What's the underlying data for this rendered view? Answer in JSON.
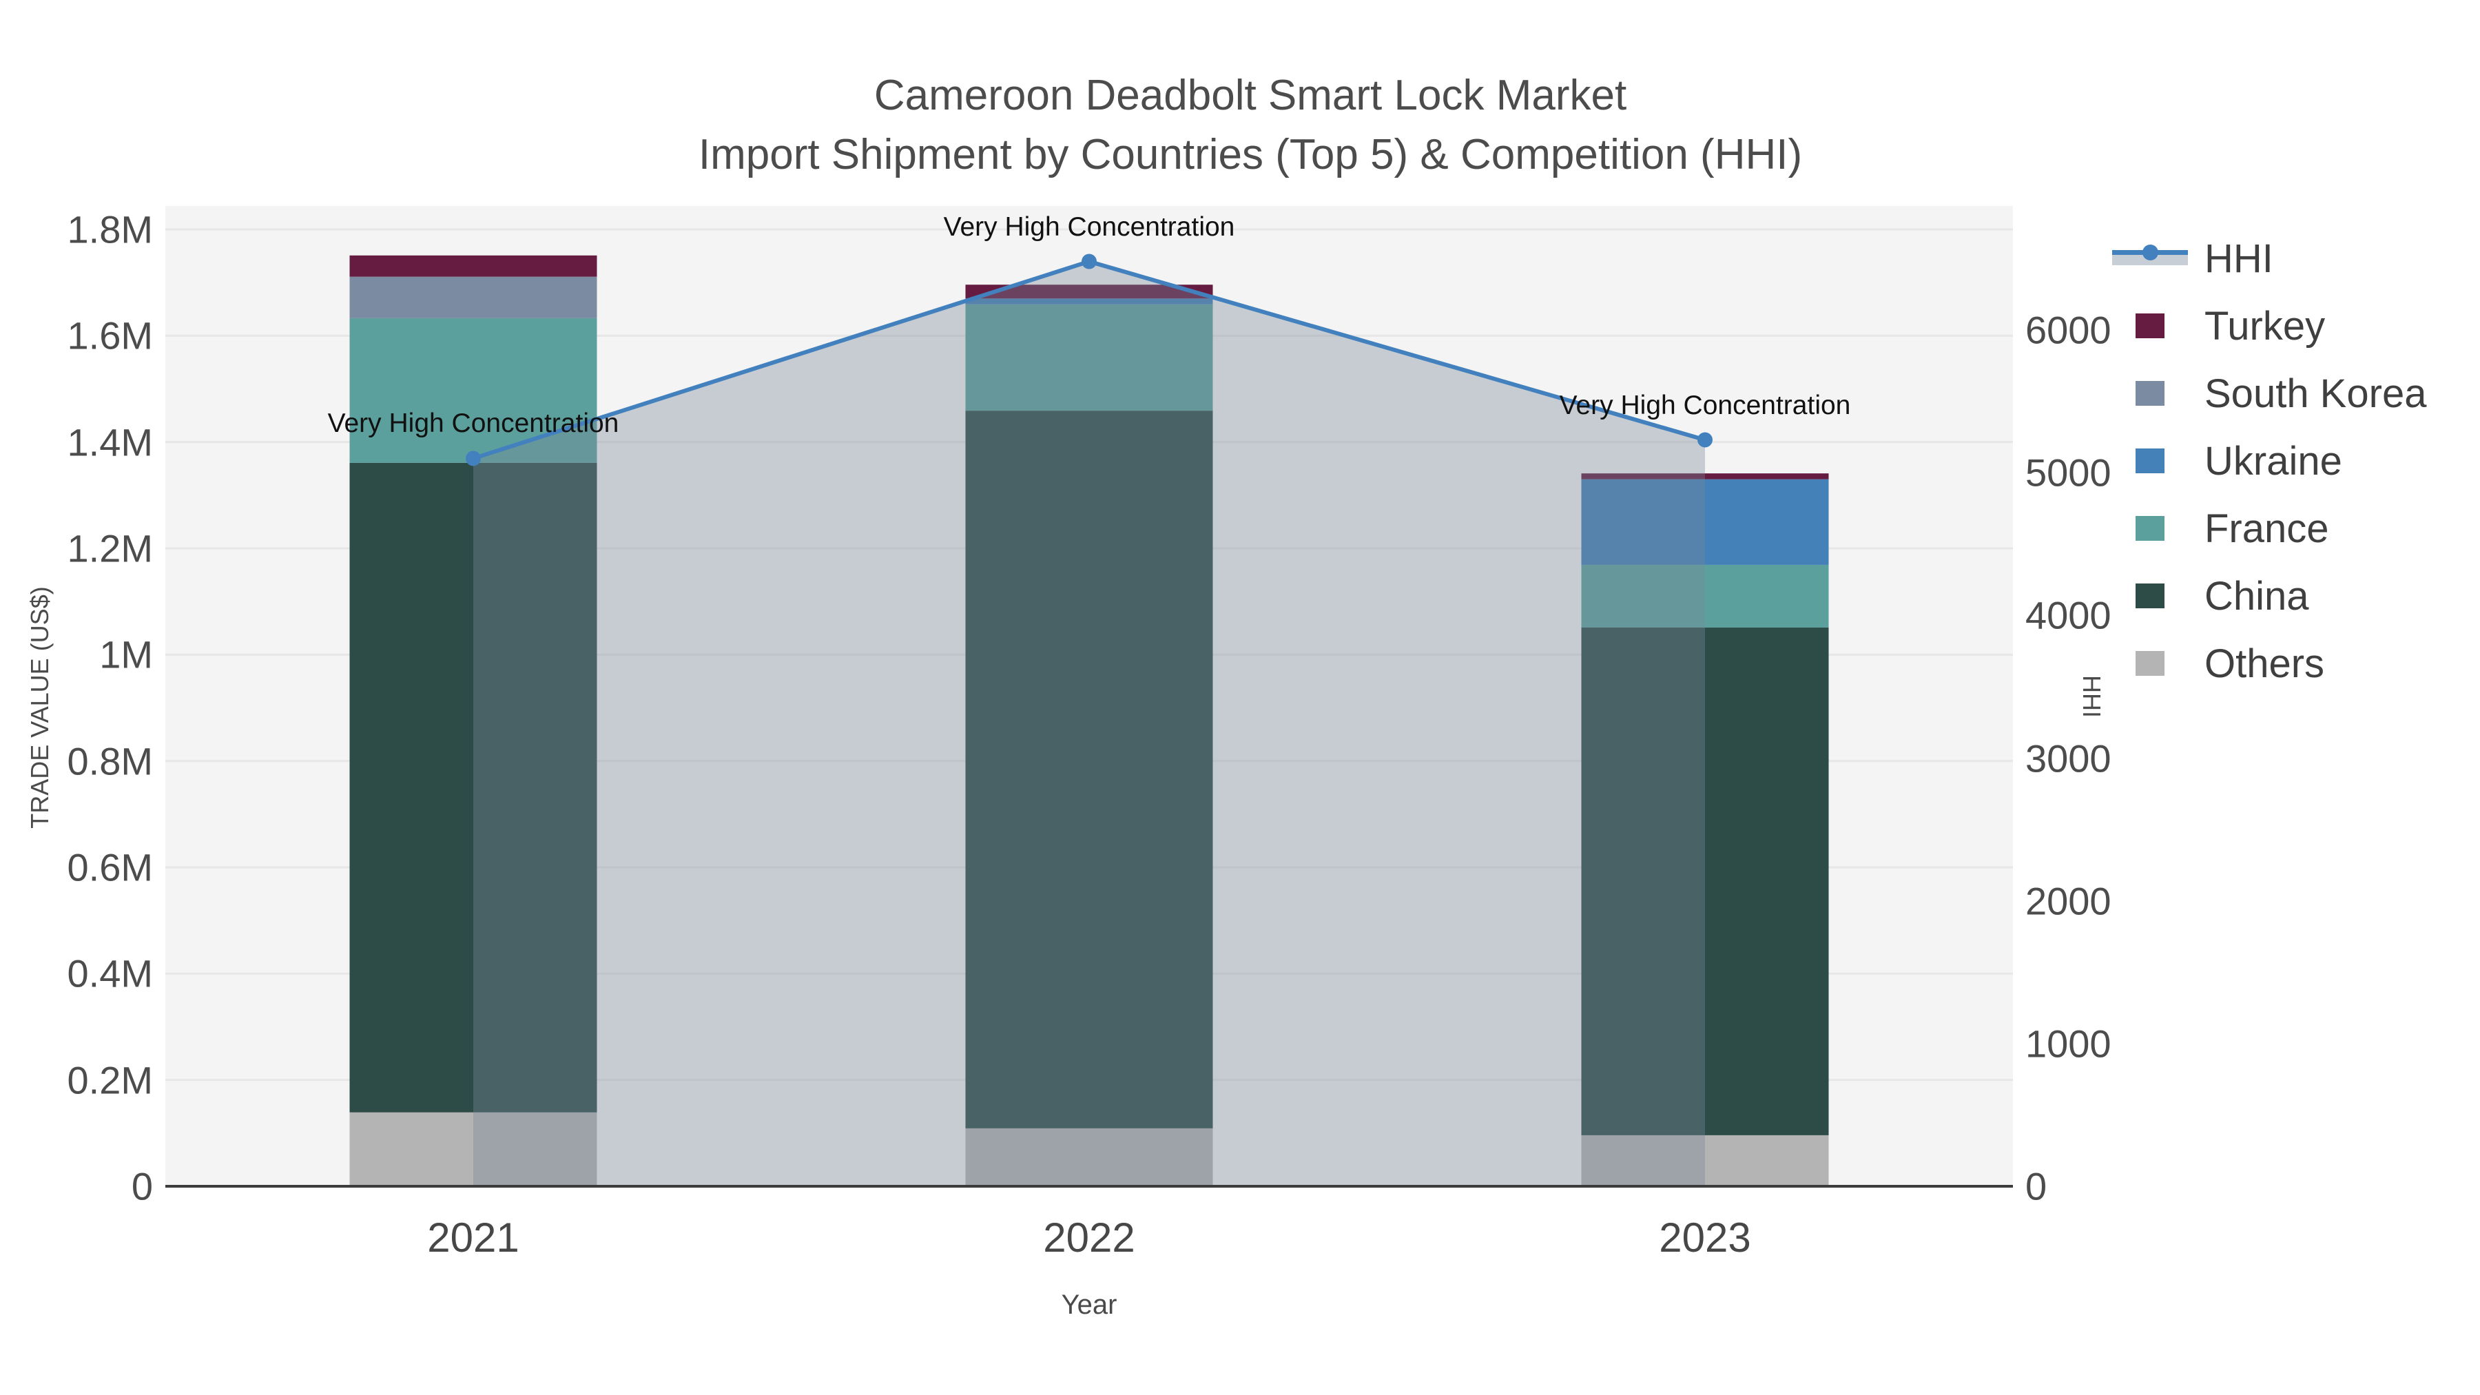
{
  "title": {
    "line1": "Cameroon Deadbolt Smart Lock Market",
    "line2": "Import Shipment by Countries (Top 5) & Competition (HHI)"
  },
  "axes": {
    "x": {
      "title": "Year",
      "categories": [
        "2021",
        "2022",
        "2023"
      ]
    },
    "y": {
      "title": "TRADE VALUE (US$)",
      "ticks": [
        {
          "label": "0",
          "value": 0
        },
        {
          "label": "0.2M",
          "value": 200000
        },
        {
          "label": "0.4M",
          "value": 400000
        },
        {
          "label": "0.6M",
          "value": 600000
        },
        {
          "label": "0.8M",
          "value": 800000
        },
        {
          "label": "1M",
          "value": 1000000
        },
        {
          "label": "1.2M",
          "value": 1200000
        },
        {
          "label": "1.4M",
          "value": 1400000
        },
        {
          "label": "1.6M",
          "value": 1600000
        },
        {
          "label": "1.8M",
          "value": 1800000
        }
      ]
    },
    "y2": {
      "title": "HHI",
      "ticks": [
        {
          "label": "0",
          "value": 0
        },
        {
          "label": "1000",
          "value": 1000
        },
        {
          "label": "2000",
          "value": 2000
        },
        {
          "label": "3000",
          "value": 3000
        },
        {
          "label": "4000",
          "value": 4000
        },
        {
          "label": "5000",
          "value": 5000
        },
        {
          "label": "6000",
          "value": 6000
        }
      ]
    }
  },
  "legend": {
    "items": [
      {
        "label": "HHI",
        "type": "line",
        "color": "#4381BE",
        "band": "#C8CED5"
      },
      {
        "label": "Turkey",
        "type": "swatch",
        "color": "#651C40"
      },
      {
        "label": "South Korea",
        "type": "swatch",
        "color": "#7B8BA1"
      },
      {
        "label": "Ukraine",
        "type": "swatch",
        "color": "#4381B8"
      },
      {
        "label": "France",
        "type": "swatch",
        "color": "#5CA09E"
      },
      {
        "label": "China",
        "type": "swatch",
        "color": "#2D4C48"
      },
      {
        "label": "Others",
        "type": "swatch",
        "color": "#B4B4B4"
      }
    ]
  },
  "colors": {
    "page_background": "#FFFFFF",
    "plot_background": "#F4F4F4",
    "gridline": "#E7E7E7",
    "axis_line": "#3C3C3C",
    "hhi_line": "#4381BE",
    "hhi_area_fill": "rgba(119,136,153,0.37)",
    "tick_text": "#4C4C4C",
    "title_text": "#4C4C4C",
    "annotation_text": "#111111"
  },
  "chart_data": {
    "type": "bar",
    "subtype": "stacked-bar-with-line",
    "title": "Cameroon Deadbolt Smart Lock Market — Import Shipment by Countries (Top 5) & Competition (HHI)",
    "xlabel": "Year",
    "ylabel": "TRADE VALUE (US$)",
    "y2label": "HHI",
    "ylim": [
      0,
      1800000
    ],
    "y2lim": [
      0,
      6000
    ],
    "grid": true,
    "legend_position": "right",
    "categories": [
      "2021",
      "2022",
      "2023"
    ],
    "series": [
      {
        "name": "Others",
        "color": "#B4B4B4",
        "values": [
          139000,
          109000,
          96000
        ]
      },
      {
        "name": "China",
        "color": "#2D4C48",
        "values": [
          1222000,
          1350000,
          955000
        ]
      },
      {
        "name": "France",
        "color": "#5CA09E",
        "values": [
          272000,
          200000,
          118000
        ]
      },
      {
        "name": "Ukraine",
        "color": "#4381B8",
        "values": [
          0,
          11000,
          161000
        ]
      },
      {
        "name": "South Korea",
        "color": "#7B8BA1",
        "values": [
          78000,
          0,
          0
        ]
      },
      {
        "name": "Turkey",
        "color": "#651C40",
        "values": [
          40000,
          26000,
          11000
        ]
      }
    ],
    "line_series": {
      "name": "HHI",
      "axis": "y2",
      "color": "#4381BE",
      "fill": "rgba(119,136,153,0.37)",
      "values": [
        5100,
        6480,
        5230
      ]
    },
    "annotations": [
      {
        "text": "Very High Concentration",
        "category": "2021"
      },
      {
        "text": "Very High Concentration",
        "category": "2022"
      },
      {
        "text": "Very High Concentration",
        "category": "2023"
      }
    ]
  }
}
